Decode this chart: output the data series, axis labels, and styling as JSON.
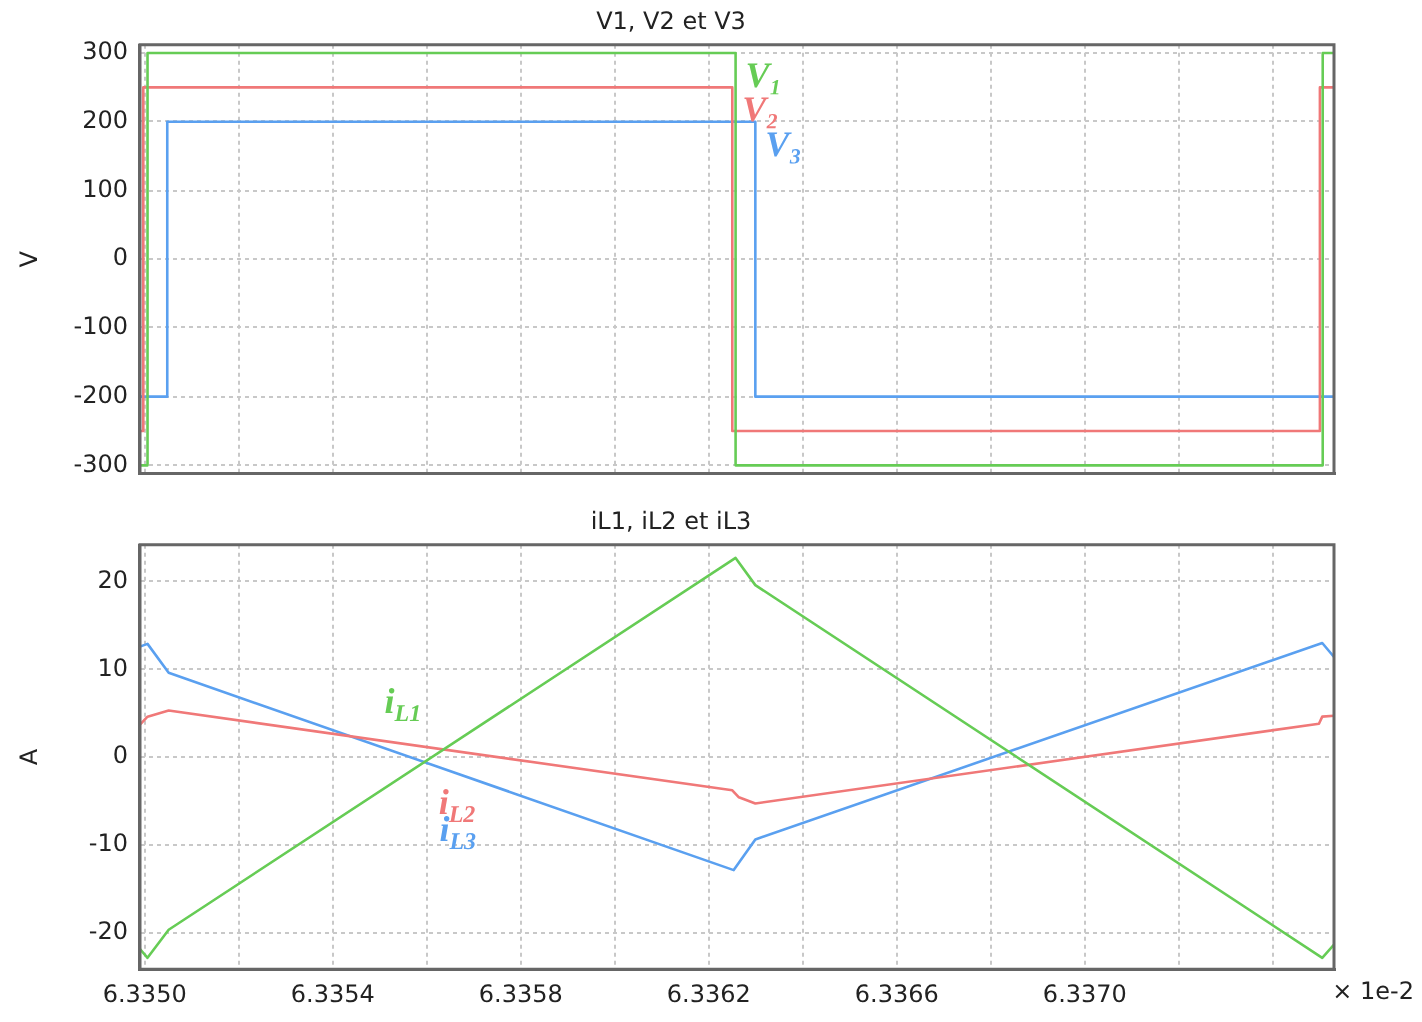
{
  "chart_data": [
    {
      "type": "step",
      "title": "V1, V2 et V3",
      "ylabel": "V",
      "xlim": [
        6.33499,
        6.33753
      ],
      "ylim": [
        -312,
        312
      ],
      "xticks": [
        {
          "value": 6.335,
          "label": null
        },
        {
          "value": 6.3352,
          "label": null
        },
        {
          "value": 6.3354,
          "label": null
        },
        {
          "value": 6.3356,
          "label": null
        },
        {
          "value": 6.3358,
          "label": null
        },
        {
          "value": 6.336,
          "label": null
        },
        {
          "value": 6.3362,
          "label": null
        },
        {
          "value": 6.3364,
          "label": null
        },
        {
          "value": 6.3366,
          "label": null
        },
        {
          "value": 6.3368,
          "label": null
        },
        {
          "value": 6.337,
          "label": null
        },
        {
          "value": 6.3372,
          "label": null
        },
        {
          "value": 6.3374,
          "label": null
        }
      ],
      "yticks": [
        -300,
        -200,
        -100,
        0,
        100,
        200,
        300
      ],
      "tick_labels": "y",
      "grid": true,
      "legend": false,
      "series": [
        {
          "name": "V₁",
          "color": "#66cc55",
          "x": [
            6.33499,
            6.335006,
            6.336257,
            6.337506,
            6.33753
          ],
          "values": [
            -300,
            300,
            -300,
            300,
            300
          ]
        },
        {
          "name": "V₂",
          "color": "#f07878",
          "x": [
            6.33499,
            6.334997,
            6.33625,
            6.3375,
            6.33753
          ],
          "values": [
            -250,
            250,
            -250,
            250,
            250
          ]
        },
        {
          "name": "V₃",
          "color": "#5aa0f0",
          "x": [
            6.33499,
            6.335048,
            6.336299,
            6.33753
          ],
          "values": [
            -200,
            200,
            -200,
            -200
          ]
        }
      ]
    },
    {
      "type": "line",
      "title": "iL1, iL2 et iL3",
      "ylabel": "A",
      "xlabel": "× 1e-2",
      "xlim": [
        6.33499,
        6.33753
      ],
      "ylim": [
        -24.2,
        24.2
      ],
      "xticks": [
        {
          "value": 6.335,
          "label": "6.3350"
        },
        {
          "value": 6.3352,
          "label": null
        },
        {
          "value": 6.3354,
          "label": "6.3354"
        },
        {
          "value": 6.3356,
          "label": null
        },
        {
          "value": 6.3358,
          "label": "6.3358"
        },
        {
          "value": 6.336,
          "label": null
        },
        {
          "value": 6.3362,
          "label": "6.3362"
        },
        {
          "value": 6.3364,
          "label": null
        },
        {
          "value": 6.3366,
          "label": "6.3366"
        },
        {
          "value": 6.3368,
          "label": null
        },
        {
          "value": 6.337,
          "label": "6.3370"
        },
        {
          "value": 6.3372,
          "label": null
        },
        {
          "value": 6.3374,
          "label": null
        }
      ],
      "yticks": [
        -20,
        -10,
        0,
        10,
        20
      ],
      "grid": true,
      "legend": false,
      "series": [
        {
          "name": "i$_{L1}$",
          "color": "#66cc55",
          "x": [
            6.33499,
            6.335006,
            6.335051,
            6.336257,
            6.336299,
            6.337505,
            6.33753
          ],
          "values": [
            -21.9,
            -22.9,
            -19.7,
            22.7,
            19.6,
            -22.9,
            -21.4
          ]
        },
        {
          "name": "i$_{L2}$",
          "color": "#f07878",
          "x": [
            6.33499,
            6.335006,
            6.335051,
            6.33625,
            6.336264,
            6.336299,
            6.337498,
            6.337505,
            6.33753
          ],
          "values": [
            3.7,
            4.6,
            5.3,
            -3.8,
            -4.6,
            -5.3,
            3.8,
            4.6,
            4.7
          ]
        },
        {
          "name": "i$_{L3}$",
          "color": "#5aa0f0",
          "x": [
            6.33499,
            6.335006,
            6.335051,
            6.336253,
            6.336299,
            6.337505,
            6.33753
          ],
          "values": [
            12.6,
            12.9,
            9.6,
            -12.9,
            -9.4,
            13.0,
            11.4
          ]
        }
      ]
    }
  ]
}
